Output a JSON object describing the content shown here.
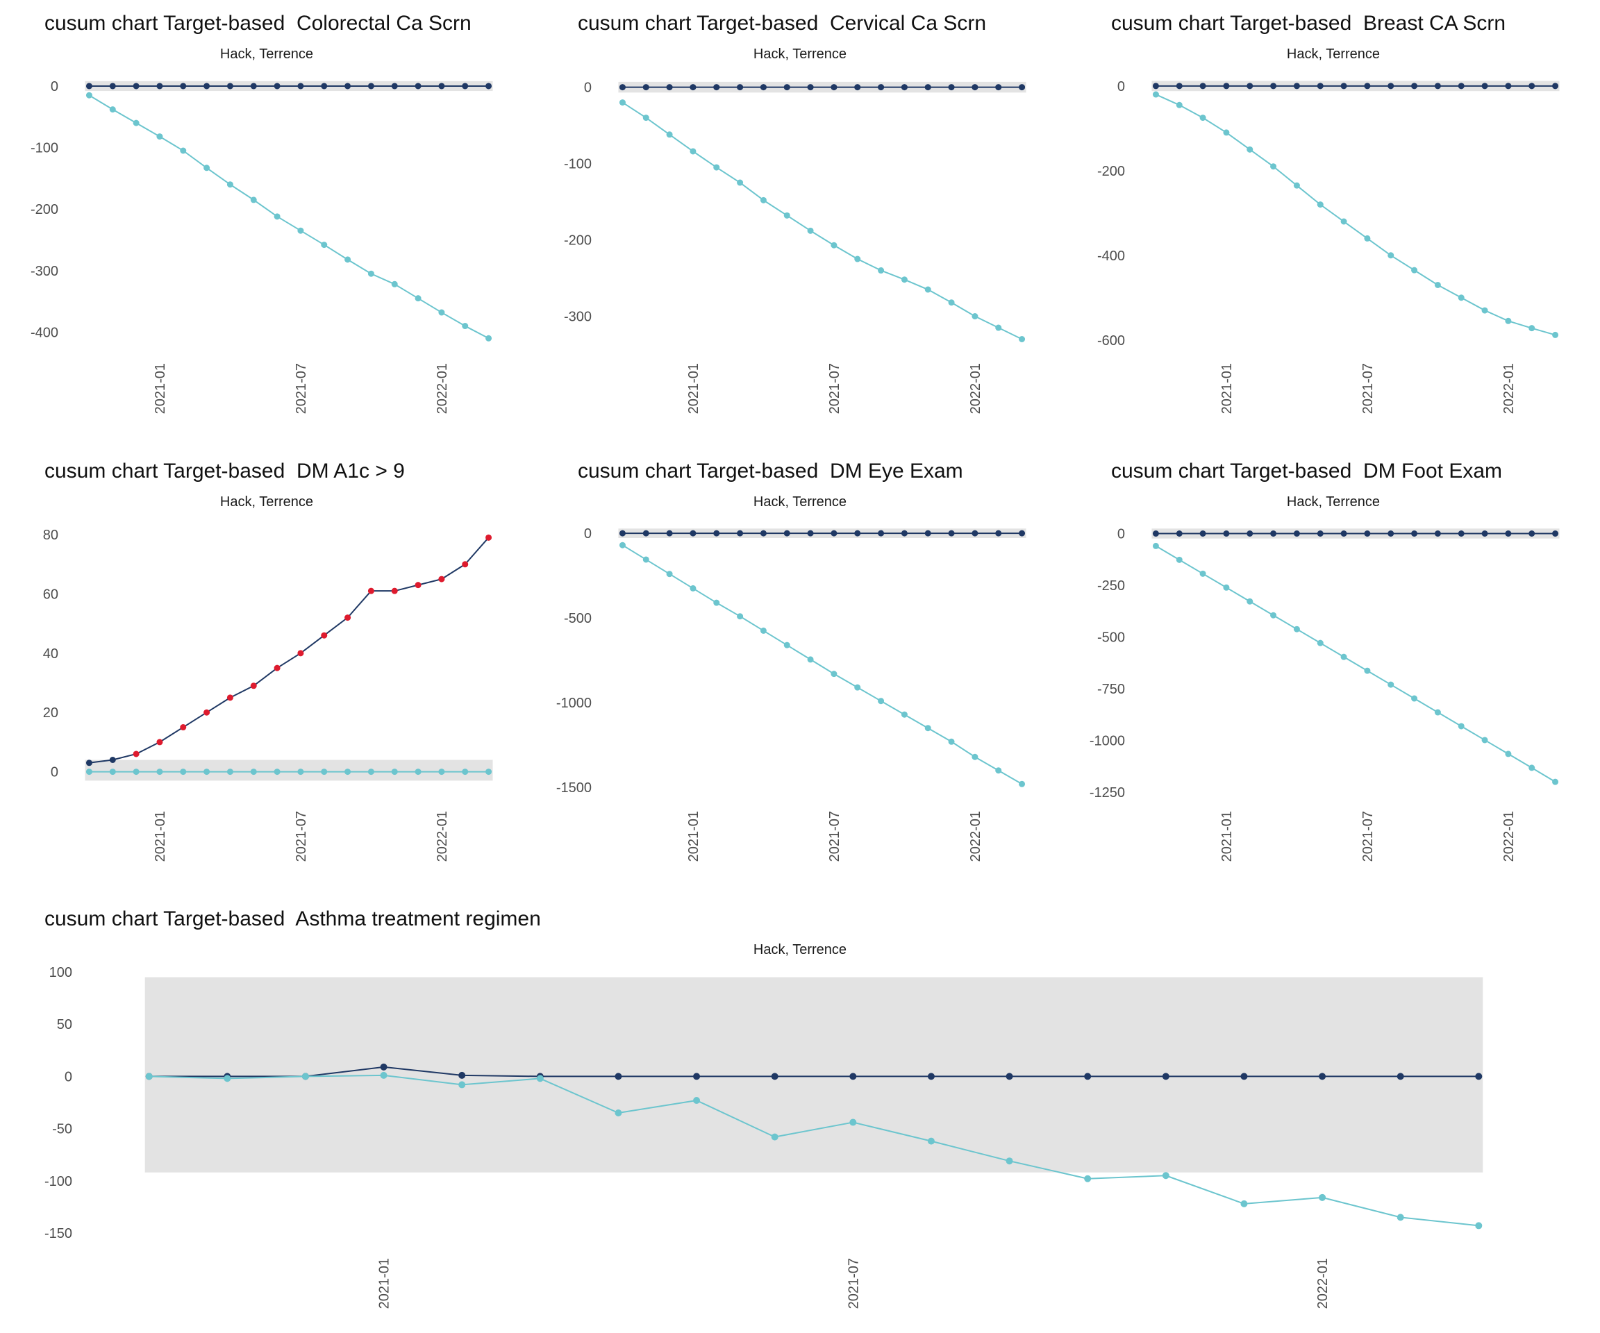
{
  "colors": {
    "navy": "#1F3864",
    "cyan": "#6CC5CE",
    "red": "#DE1B2E",
    "band": "#E3E3E3",
    "axis_text": "#4D4D4D",
    "background": "#FFFFFF"
  },
  "x_ticks": [
    {
      "index": 3,
      "label": "2021-01"
    },
    {
      "index": 9,
      "label": "2021-07"
    },
    {
      "index": 15,
      "label": "2022-01"
    }
  ],
  "charts": [
    {
      "title": "cusum chart Target-based  Colorectal Ca Scrn",
      "subtitle": "Hack, Terrence",
      "type": "line",
      "y_ticks": [
        "0",
        "-100",
        "-200",
        "-300",
        "-400"
      ],
      "y_domain": [
        -430,
        18
      ],
      "band": {
        "low": -8,
        "high": 8
      },
      "series": [
        {
          "name": "baseline",
          "color": "#1F3864",
          "values": [
            0,
            0,
            0,
            0,
            0,
            0,
            0,
            0,
            0,
            0,
            0,
            0,
            0,
            0,
            0,
            0,
            0,
            0
          ]
        },
        {
          "name": "cusum",
          "color": "#6CC5CE",
          "values": [
            -15,
            -38,
            -60,
            -82,
            -105,
            -133,
            -160,
            -185,
            -212,
            -235,
            -258,
            -282,
            -305,
            -322,
            -345,
            -368,
            -390,
            -410
          ]
        }
      ]
    },
    {
      "title": "cusum chart Target-based  Cervical Ca Scrn",
      "subtitle": "Hack, Terrence",
      "type": "line",
      "y_ticks": [
        "0",
        "-100",
        "-200",
        "-300"
      ],
      "y_domain": [
        -345,
        16
      ],
      "band": {
        "low": -7,
        "high": 7
      },
      "series": [
        {
          "name": "baseline",
          "color": "#1F3864",
          "values": [
            0,
            0,
            0,
            0,
            0,
            0,
            0,
            0,
            0,
            0,
            0,
            0,
            0,
            0,
            0,
            0,
            0,
            0
          ]
        },
        {
          "name": "cusum",
          "color": "#6CC5CE",
          "values": [
            -20,
            -40,
            -62,
            -84,
            -105,
            -125,
            -148,
            -168,
            -188,
            -207,
            -225,
            -240,
            -252,
            -265,
            -282,
            -300,
            -315,
            -330
          ]
        }
      ]
    },
    {
      "title": "cusum chart Target-based  Breast CA Scrn",
      "subtitle": "Hack, Terrence",
      "type": "line",
      "y_ticks": [
        "0",
        "-200",
        "-400",
        "-600"
      ],
      "y_domain": [
        -625,
        26
      ],
      "band": {
        "low": -12,
        "high": 12
      },
      "series": [
        {
          "name": "baseline",
          "color": "#1F3864",
          "values": [
            0,
            0,
            0,
            0,
            0,
            0,
            0,
            0,
            0,
            0,
            0,
            0,
            0,
            0,
            0,
            0,
            0,
            0
          ]
        },
        {
          "name": "cusum",
          "color": "#6CC5CE",
          "values": [
            -20,
            -45,
            -75,
            -110,
            -150,
            -190,
            -235,
            -280,
            -320,
            -360,
            -400,
            -435,
            -470,
            -500,
            -530,
            -555,
            -572,
            -588
          ]
        }
      ]
    },
    {
      "title": "cusum chart Target-based  DM A1c > 9",
      "subtitle": "Hack, Terrence",
      "type": "line",
      "y_ticks": [
        "0",
        "20",
        "40",
        "60",
        "80"
      ],
      "y_domain": [
        -9,
        84
      ],
      "band": {
        "low": -3,
        "high": 4
      },
      "series": [
        {
          "name": "baseline",
          "color": "#6CC5CE",
          "values": [
            0,
            0,
            0,
            0,
            0,
            0,
            0,
            0,
            0,
            0,
            0,
            0,
            0,
            0,
            0,
            0,
            0,
            0
          ]
        },
        {
          "name": "cusum",
          "color": "#1F3864",
          "values": [
            3,
            4,
            6,
            10,
            15,
            20,
            25,
            29,
            35,
            40,
            46,
            52,
            61,
            61,
            63,
            65,
            70,
            79
          ],
          "point_colors": [
            "#1F3864",
            "#1F3864",
            "#DE1B2E",
            "#DE1B2E",
            "#DE1B2E",
            "#DE1B2E",
            "#DE1B2E",
            "#DE1B2E",
            "#DE1B2E",
            "#DE1B2E",
            "#DE1B2E",
            "#DE1B2E",
            "#DE1B2E",
            "#DE1B2E",
            "#DE1B2E",
            "#DE1B2E",
            "#DE1B2E",
            "#DE1B2E"
          ]
        }
      ]
    },
    {
      "title": "cusum chart Target-based  DM Eye Exam",
      "subtitle": "Hack, Terrence",
      "type": "line",
      "y_ticks": [
        "0",
        "-500",
        "-1000",
        "-1500"
      ],
      "y_domain": [
        -1565,
        62
      ],
      "band": {
        "low": -28,
        "high": 28
      },
      "series": [
        {
          "name": "baseline",
          "color": "#1F3864",
          "values": [
            0,
            0,
            0,
            0,
            0,
            0,
            0,
            0,
            0,
            0,
            0,
            0,
            0,
            0,
            0,
            0,
            0,
            0
          ]
        },
        {
          "name": "cusum",
          "color": "#6CC5CE",
          "values": [
            -70,
            -155,
            -240,
            -325,
            -410,
            -490,
            -575,
            -660,
            -745,
            -830,
            -910,
            -990,
            -1070,
            -1150,
            -1230,
            -1320,
            -1400,
            -1480
          ]
        }
      ]
    },
    {
      "title": "cusum chart Target-based  DM Foot Exam",
      "subtitle": "Hack, Terrence",
      "type": "line",
      "y_ticks": [
        "0",
        "-250",
        "-500",
        "-750",
        "-1000",
        "-1250"
      ],
      "y_domain": [
        -1280,
        52
      ],
      "band": {
        "low": -24,
        "high": 24
      },
      "series": [
        {
          "name": "baseline",
          "color": "#1F3864",
          "values": [
            0,
            0,
            0,
            0,
            0,
            0,
            0,
            0,
            0,
            0,
            0,
            0,
            0,
            0,
            0,
            0,
            0,
            0
          ]
        },
        {
          "name": "cusum",
          "color": "#6CC5CE",
          "values": [
            -60,
            -127,
            -194,
            -261,
            -328,
            -395,
            -462,
            -529,
            -596,
            -663,
            -730,
            -797,
            -864,
            -931,
            -998,
            -1065,
            -1132,
            -1200
          ]
        }
      ]
    },
    {
      "title": "cusum chart Target-based  Asthma treatment regimen",
      "subtitle": "Hack, Terrence",
      "type": "line",
      "y_ticks": [
        "100",
        "50",
        "0",
        "-50",
        "-100",
        "-150"
      ],
      "y_domain": [
        -162,
        104
      ],
      "band": {
        "low": -92,
        "high": 95
      },
      "series": [
        {
          "name": "baseline",
          "color": "#1F3864",
          "values": [
            0,
            0,
            0,
            9,
            1,
            0,
            0,
            0,
            0,
            0,
            0,
            0,
            0,
            0,
            0,
            0,
            0,
            0
          ]
        },
        {
          "name": "cusum",
          "color": "#6CC5CE",
          "values": [
            0,
            -2,
            0,
            1,
            -8,
            -2,
            -35,
            -23,
            -58,
            -44,
            -62,
            -81,
            -98,
            -95,
            -122,
            -116,
            -135,
            -143
          ]
        }
      ]
    }
  ]
}
